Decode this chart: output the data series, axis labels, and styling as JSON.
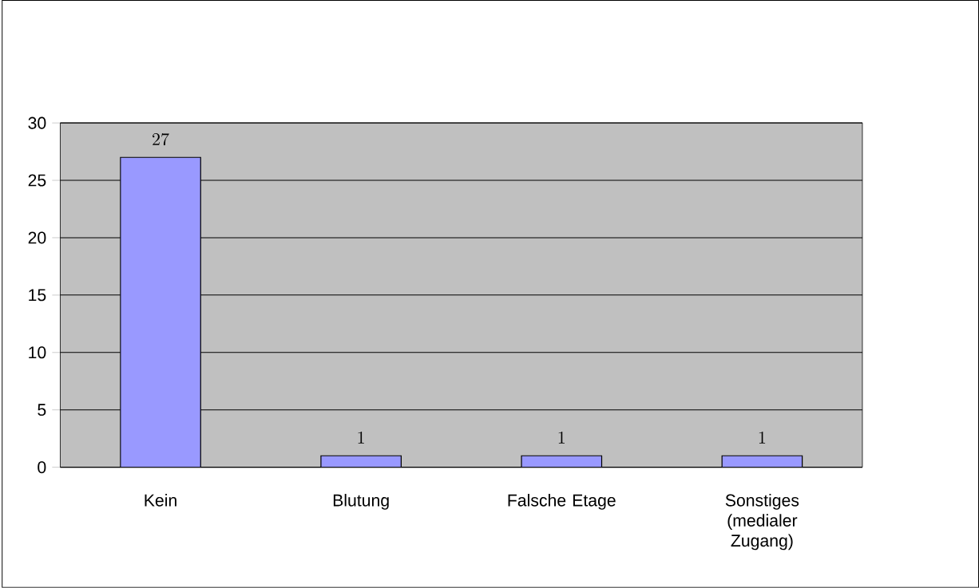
{
  "chart_data": {
    "type": "bar",
    "categories": [
      "Kein",
      "Blutung",
      "Falsche Etage",
      "Sonstiges (medialer Zugang)"
    ],
    "values": [
      27,
      1,
      1,
      1
    ],
    "color": "#9999ff",
    "ylim": [
      0,
      30
    ],
    "yticks": [
      0,
      5,
      10,
      15,
      20,
      25,
      30
    ],
    "grid": "y",
    "data_labels": true
  }
}
